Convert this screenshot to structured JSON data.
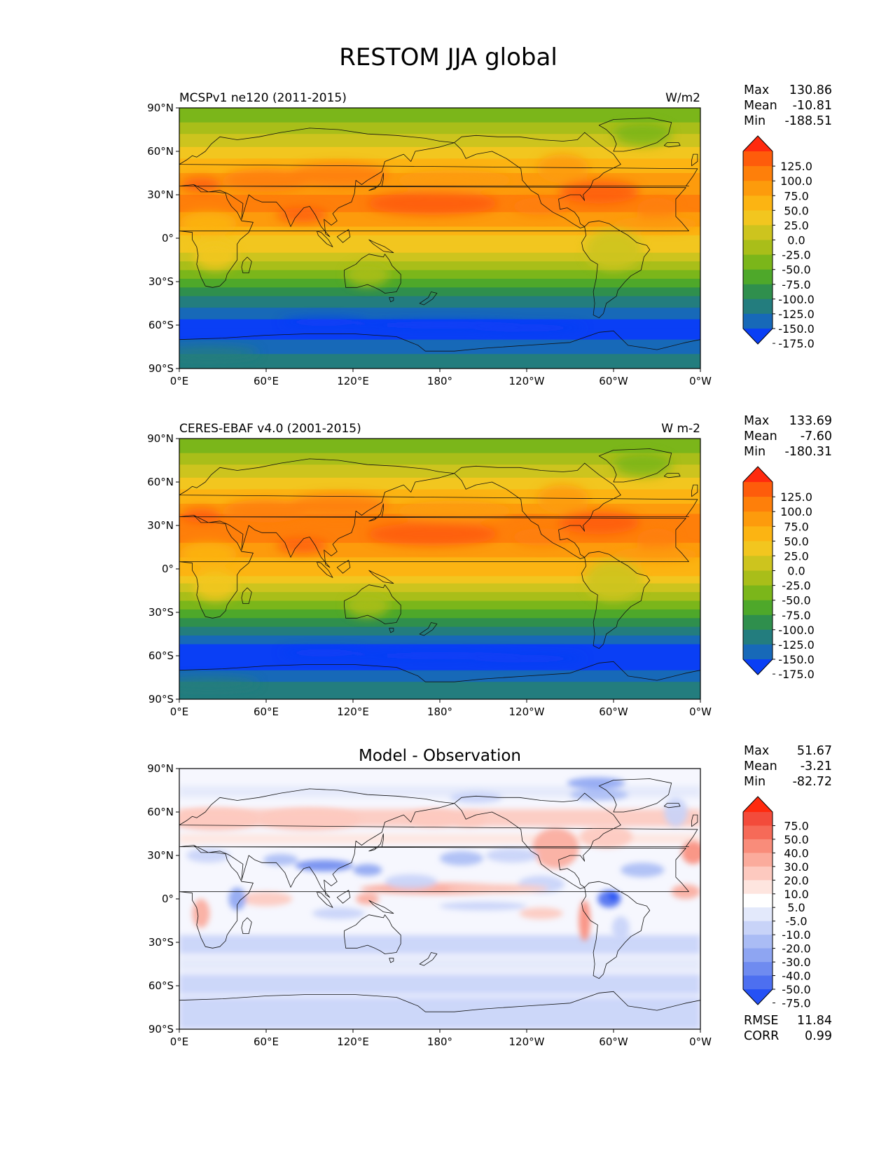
{
  "figure": {
    "title": "RESTOM JJA global"
  },
  "axis_ticks": {
    "lat": [
      "90°N",
      "60°N",
      "30°N",
      "0°",
      "30°S",
      "60°S",
      "90°S"
    ],
    "lon": [
      "0°E",
      "60°E",
      "120°E",
      "180°",
      "120°W",
      "60°W",
      "0°W"
    ]
  },
  "chart_data": [
    {
      "type": "heatmap",
      "left_title": "MCSPv1 ne120 (2011-2015)",
      "center_title": "",
      "units": "W/m2",
      "stats": [
        {
          "label": "Max",
          "value": "130.86"
        },
        {
          "label": "Mean",
          "value": "-10.81"
        },
        {
          "label": "Min",
          "value": "-188.51"
        }
      ],
      "xlim": [
        0,
        360
      ],
      "ylim": [
        -90,
        90
      ],
      "colorbar": {
        "levels": [
          "125.0",
          "100.0",
          "75.0",
          "50.0",
          "25.0",
          "0.0",
          "-25.0",
          "-50.0",
          "-75.0",
          "-100.0",
          "-125.0",
          "-150.0",
          "-175.0"
        ],
        "colors": [
          "#ff2a0e",
          "#fe5c0b",
          "#fe7f0a",
          "#fd9b0c",
          "#fcb412",
          "#f2c61f",
          "#cdc41e",
          "#a9be19",
          "#7bb61a",
          "#4ea82a",
          "#2f8f4d",
          "#237d7e",
          "#1769b8",
          "#0a3ff5"
        ]
      }
    },
    {
      "type": "heatmap",
      "left_title": "CERES-EBAF v4.0 (2001-2015)",
      "center_title": "",
      "units": "W m-2",
      "stats": [
        {
          "label": "Max",
          "value": "133.69"
        },
        {
          "label": "Mean",
          "value": "-7.60"
        },
        {
          "label": "Min",
          "value": "-180.31"
        }
      ],
      "xlim": [
        0,
        360
      ],
      "ylim": [
        -90,
        90
      ],
      "colorbar": {
        "levels": [
          "125.0",
          "100.0",
          "75.0",
          "50.0",
          "25.0",
          "0.0",
          "-25.0",
          "-50.0",
          "-75.0",
          "-100.0",
          "-125.0",
          "-150.0",
          "-175.0"
        ],
        "colors": [
          "#ff2a0e",
          "#fe5c0b",
          "#fe7f0a",
          "#fd9b0c",
          "#fcb412",
          "#f2c61f",
          "#cdc41e",
          "#a9be19",
          "#7bb61a",
          "#4ea82a",
          "#2f8f4d",
          "#237d7e",
          "#1769b8",
          "#0a3ff5"
        ]
      }
    },
    {
      "type": "heatmap",
      "left_title": "",
      "center_title": "Model - Observation",
      "units": "",
      "stats": [
        {
          "label": "Max",
          "value": "51.67"
        },
        {
          "label": "Mean",
          "value": "-3.21"
        },
        {
          "label": "Min",
          "value": "-82.72"
        }
      ],
      "metrics": [
        {
          "label": "RMSE",
          "value": "11.84"
        },
        {
          "label": "CORR",
          "value": "0.99"
        }
      ],
      "xlim": [
        0,
        360
      ],
      "ylim": [
        -90,
        90
      ],
      "colorbar": {
        "levels": [
          "75.0",
          "50.0",
          "40.0",
          "30.0",
          "20.0",
          "10.0",
          "5.0",
          "-5.0",
          "-10.0",
          "-20.0",
          "-30.0",
          "-40.0",
          "-50.0",
          "-75.0"
        ],
        "colors": [
          "#ff2a0e",
          "#f34b3b",
          "#f66a58",
          "#f98c7a",
          "#fbab9c",
          "#fdc9bf",
          "#fee5df",
          "#ffffff",
          "#e3e9fb",
          "#c8d3f8",
          "#aabcf5",
          "#8ea5f2",
          "#6f8bf0",
          "#4d6ff0",
          "#2551f5"
        ]
      }
    }
  ]
}
